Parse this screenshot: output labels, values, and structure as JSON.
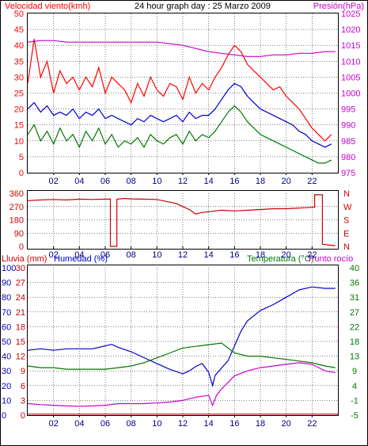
{
  "header": {
    "left_label": "Velocidad viento(kmh)",
    "title": "24 hour graph day : 25 Marzo 2009",
    "right_label": "Presión(hPa)"
  },
  "colors": {
    "red": "#ff0000",
    "dark_red": "#cc0000",
    "blue": "#0000cc",
    "green": "#007700",
    "magenta": "#cc00cc",
    "dark_blue": "#000088",
    "frame": "#000000",
    "background": "#ffffff"
  },
  "chart_data": [
    {
      "type": "line",
      "panel": "wind-pressure",
      "x_ticks": [
        "02",
        "04",
        "06",
        "08",
        "10",
        "12",
        "14",
        "16",
        "18",
        "20",
        "22"
      ],
      "xlim": [
        0,
        24
      ],
      "left_axis": {
        "label": "Velocidad viento(kmh)",
        "ticks": [
          "0",
          "5",
          "10",
          "15",
          "20",
          "25",
          "30",
          "35",
          "40",
          "45",
          "50"
        ],
        "ylim": [
          0,
          50
        ]
      },
      "right_axis": {
        "label": "Presión(hPa)",
        "ticks": [
          "975",
          "980",
          "985",
          "990",
          "995",
          "1000",
          "1005",
          "1010",
          "1015",
          "1020",
          "1025"
        ],
        "ylim": [
          975,
          1025
        ]
      },
      "series": [
        {
          "axis": "left",
          "color": "#ff0000",
          "x": [
            0,
            0.5,
            1,
            1.5,
            2,
            2.5,
            3,
            3.5,
            4,
            4.5,
            5,
            5.5,
            6,
            6.5,
            7,
            7.5,
            8,
            8.5,
            9,
            9.5,
            10,
            10.5,
            11,
            11.5,
            12,
            12.5,
            13,
            13.5,
            14,
            14.5,
            15,
            15.5,
            16,
            16.5,
            17,
            17.5,
            18,
            18.5,
            19,
            19.5,
            20,
            20.5,
            21,
            21.5,
            22,
            22.5,
            23,
            23.5
          ],
          "y": [
            28,
            42,
            30,
            35,
            25,
            32,
            28,
            30,
            26,
            30,
            27,
            33,
            25,
            30,
            28,
            26,
            22,
            28,
            24,
            30,
            26,
            24,
            28,
            27,
            23,
            30,
            25,
            28,
            26,
            30,
            33,
            37,
            40,
            38,
            34,
            32,
            30,
            28,
            26,
            27,
            24,
            22,
            20,
            17,
            14,
            12,
            10,
            12
          ]
        },
        {
          "axis": "left",
          "color": "#0000cc",
          "x": [
            0,
            0.5,
            1,
            1.5,
            2,
            2.5,
            3,
            3.5,
            4,
            4.5,
            5,
            5.5,
            6,
            6.5,
            7,
            7.5,
            8,
            8.5,
            9,
            9.5,
            10,
            10.5,
            11,
            11.5,
            12,
            12.5,
            13,
            13.5,
            14,
            14.5,
            15,
            15.5,
            16,
            16.5,
            17,
            17.5,
            18,
            18.5,
            19,
            19.5,
            20,
            20.5,
            21,
            21.5,
            22,
            22.5,
            23,
            23.5
          ],
          "y": [
            20,
            22,
            19,
            21,
            18,
            19,
            18,
            20,
            17,
            19,
            18,
            20,
            17,
            18,
            17,
            16,
            15,
            17,
            16,
            18,
            17,
            16,
            17,
            18,
            16,
            19,
            17,
            18,
            18,
            20,
            23,
            26,
            28,
            27,
            24,
            22,
            20,
            19,
            18,
            17,
            16,
            15,
            13,
            12,
            10,
            9,
            8,
            9
          ]
        },
        {
          "axis": "left",
          "color": "#007700",
          "x": [
            0,
            0.5,
            1,
            1.5,
            2,
            2.5,
            3,
            3.5,
            4,
            4.5,
            5,
            5.5,
            6,
            6.5,
            7,
            7.5,
            8,
            8.5,
            9,
            9.5,
            10,
            10.5,
            11,
            11.5,
            12,
            12.5,
            13,
            13.5,
            14,
            14.5,
            15,
            15.5,
            16,
            16.5,
            17,
            17.5,
            18,
            18.5,
            19,
            19.5,
            20,
            20.5,
            21,
            21.5,
            22,
            22.5,
            23,
            23.5
          ],
          "y": [
            12,
            15,
            10,
            13,
            9,
            14,
            10,
            12,
            8,
            13,
            10,
            14,
            9,
            12,
            8,
            10,
            9,
            11,
            8,
            12,
            10,
            9,
            11,
            12,
            9,
            13,
            10,
            12,
            11,
            13,
            16,
            19,
            21,
            19,
            16,
            14,
            12,
            11,
            10,
            9,
            8,
            7,
            6,
            5,
            4,
            3,
            3,
            4
          ]
        },
        {
          "axis": "right",
          "color": "#cc00cc",
          "x": [
            0,
            1,
            2,
            3,
            4,
            5,
            6,
            7,
            8,
            9,
            10,
            11,
            12,
            13,
            14,
            15,
            16,
            17,
            18,
            19,
            20,
            21,
            22,
            23,
            23.8
          ],
          "y": [
            1016,
            1016.5,
            1016.5,
            1016,
            1016,
            1016,
            1016,
            1016,
            1016,
            1016,
            1016,
            1015.5,
            1015,
            1014,
            1013,
            1012.5,
            1012,
            1011.5,
            1011.5,
            1012,
            1012,
            1012.5,
            1012.5,
            1013,
            1013
          ]
        }
      ]
    },
    {
      "type": "line",
      "panel": "wind-direction",
      "x_ticks": [
        "02",
        "04",
        "06",
        "08",
        "10",
        "12",
        "14",
        "16",
        "18",
        "20",
        "22"
      ],
      "xlim": [
        0,
        24
      ],
      "left_axis": {
        "ticks": [
          "360",
          "270",
          "180",
          "90",
          "0"
        ],
        "ylim": [
          0,
          360
        ]
      },
      "right_axis": {
        "ticks": [
          "N",
          "W",
          "S",
          "E",
          "N"
        ],
        "ylim": [
          0,
          360
        ]
      },
      "series": [
        {
          "axis": "left",
          "color": "#cc0000",
          "x": [
            0,
            1,
            2,
            3,
            4,
            5,
            6,
            6.4,
            6.4,
            6.9,
            6.9,
            7.5,
            8,
            9,
            10,
            11,
            11.5,
            12,
            12.5,
            13,
            13.5,
            14,
            14.5,
            15,
            16,
            17,
            18,
            19,
            20,
            21,
            22,
            22.2,
            22.2,
            22.8,
            22.8,
            23.2,
            23.8
          ],
          "y": [
            310,
            315,
            318,
            315,
            320,
            318,
            320,
            320,
            0,
            0,
            320,
            325,
            322,
            320,
            318,
            300,
            290,
            270,
            250,
            220,
            230,
            235,
            240,
            245,
            240,
            245,
            250,
            255,
            255,
            260,
            265,
            265,
            350,
            350,
            15,
            10,
            5
          ]
        }
      ]
    },
    {
      "type": "line",
      "panel": "rain-humidity-temperature",
      "x_ticks": [
        "02",
        "04",
        "06",
        "08",
        "10",
        "12",
        "14",
        "16",
        "18",
        "20",
        "22"
      ],
      "xlim": [
        0,
        24
      ],
      "left_axis_1": {
        "label": "Lluvia (mm)",
        "ticks": [
          "0",
          "3",
          "6",
          "9",
          "12",
          "15",
          "18",
          "21",
          "24",
          "27",
          "30"
        ],
        "ylim": [
          0,
          30
        ]
      },
      "left_axis_2": {
        "label": "Humedad (%)",
        "ticks": [
          "0",
          "10",
          "20",
          "30",
          "40",
          "50",
          "60",
          "70",
          "80",
          "90",
          "100"
        ],
        "ylim": [
          0,
          100
        ]
      },
      "right_axis": {
        "label": "Temperatura (°C)",
        "label2": "Punto rocío",
        "ticks": [
          "-5",
          "-1",
          "4",
          "9",
          "13",
          "18",
          "22",
          "27",
          "31",
          "36",
          "40"
        ],
        "ylim": [
          -5,
          40
        ]
      },
      "series": [
        {
          "axis": "left_1",
          "color": "#cc0000",
          "x": [
            0,
            24
          ],
          "y": [
            0.2,
            0.2
          ]
        },
        {
          "axis": "left_2",
          "color": "#0000cc",
          "x": [
            0,
            1,
            2,
            3,
            4,
            5,
            6,
            6.5,
            7,
            8,
            9,
            10,
            11,
            12,
            12.5,
            13,
            13.5,
            14,
            14.3,
            14.5,
            15,
            15.5,
            16,
            16.5,
            17,
            18,
            19,
            20,
            21,
            22,
            23,
            23.8
          ],
          "y": [
            44,
            45,
            44,
            45,
            45,
            45,
            47,
            48,
            46,
            43,
            39,
            35,
            31,
            28,
            30,
            33,
            35,
            29,
            20,
            27,
            32,
            37,
            47,
            57,
            64,
            71,
            75,
            80,
            85,
            87,
            86,
            86
          ]
        },
        {
          "axis": "right",
          "color": "#007700",
          "x": [
            0,
            1,
            2,
            3,
            4,
            5,
            6,
            7,
            8,
            9,
            10,
            11,
            12,
            13,
            14,
            15,
            16,
            17,
            18,
            19,
            20,
            21,
            22,
            23,
            23.8
          ],
          "y": [
            10,
            9.5,
            9.5,
            9,
            9,
            9,
            9,
            9.5,
            10,
            11,
            12.5,
            14,
            15.5,
            16,
            16.5,
            17,
            14,
            13,
            13,
            12.5,
            12,
            11.5,
            11,
            10,
            9.5
          ]
        },
        {
          "axis": "right",
          "color": "#cc00cc",
          "x": [
            0,
            1,
            2,
            3,
            4,
            5,
            6,
            7,
            8,
            9,
            10,
            11,
            12,
            13,
            14,
            14.3,
            14.6,
            15,
            15.5,
            16,
            17,
            18,
            19,
            20,
            21,
            22,
            23,
            23.8
          ],
          "y": [
            -1.5,
            -1.8,
            -2,
            -2.2,
            -2.3,
            -2.2,
            -2,
            -1.5,
            -1.5,
            -1.5,
            -1.3,
            -1,
            -0.5,
            0.5,
            1,
            -2,
            1,
            3,
            5,
            7,
            8.5,
            9.5,
            10,
            10.5,
            11,
            10.5,
            8.5,
            8
          ]
        }
      ]
    }
  ]
}
